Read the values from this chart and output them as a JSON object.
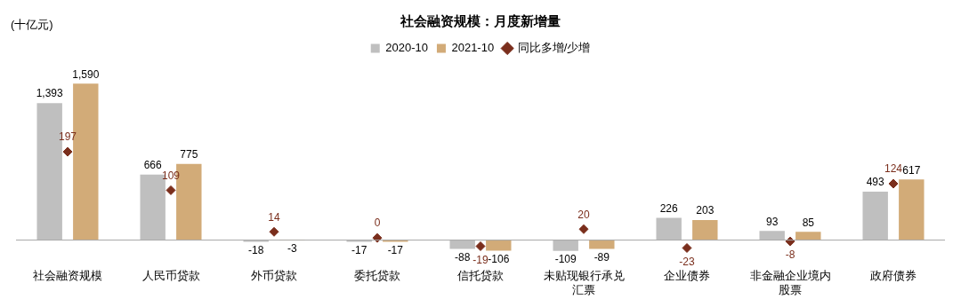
{
  "chart_data": {
    "type": "bar",
    "title": "社会融资规模：月度新增量",
    "ylabel": "(十亿元)",
    "categories": [
      "社会融资规模",
      "人民币贷款",
      "外币贷款",
      "委托贷款",
      "信托贷款",
      "未贴现银行承兑汇票",
      "企业债券",
      "非金融企业境内股票",
      "政府债券"
    ],
    "series": [
      {
        "name": "2020-10",
        "color": "#bfbfbf",
        "values": [
          1393,
          666,
          -18,
          -17,
          -88,
          -109,
          226,
          93,
          493
        ],
        "value_labels": [
          "1,393",
          "666",
          "-18",
          "-17",
          "-88",
          "-109",
          "226",
          "93",
          "493"
        ]
      },
      {
        "name": "2021-10",
        "color": "#d2ab78",
        "values": [
          1590,
          775,
          -3,
          -17,
          -106,
          -89,
          203,
          85,
          617
        ],
        "value_labels": [
          "1,590",
          "775",
          "-3",
          "-17",
          "-106",
          "-89",
          "203",
          "85",
          "617"
        ]
      },
      {
        "name": "同比多增/少增",
        "type": "scatter",
        "axis": "y2",
        "marker": "diamond",
        "color": "#7a2e1c",
        "x": [
          "社会融资规模",
          "人民币贷款",
          "外币贷款",
          "委托贷款",
          "信托贷款",
          "未贴现银行承兑汇票",
          "企业债券",
          "非金融企业境内股票",
          "政府债券"
        ],
        "values": [
          197,
          109,
          14,
          0,
          -19,
          20,
          -23,
          -8,
          124
        ]
      }
    ],
    "data_labels": true,
    "legend": "top",
    "grid": false
  }
}
